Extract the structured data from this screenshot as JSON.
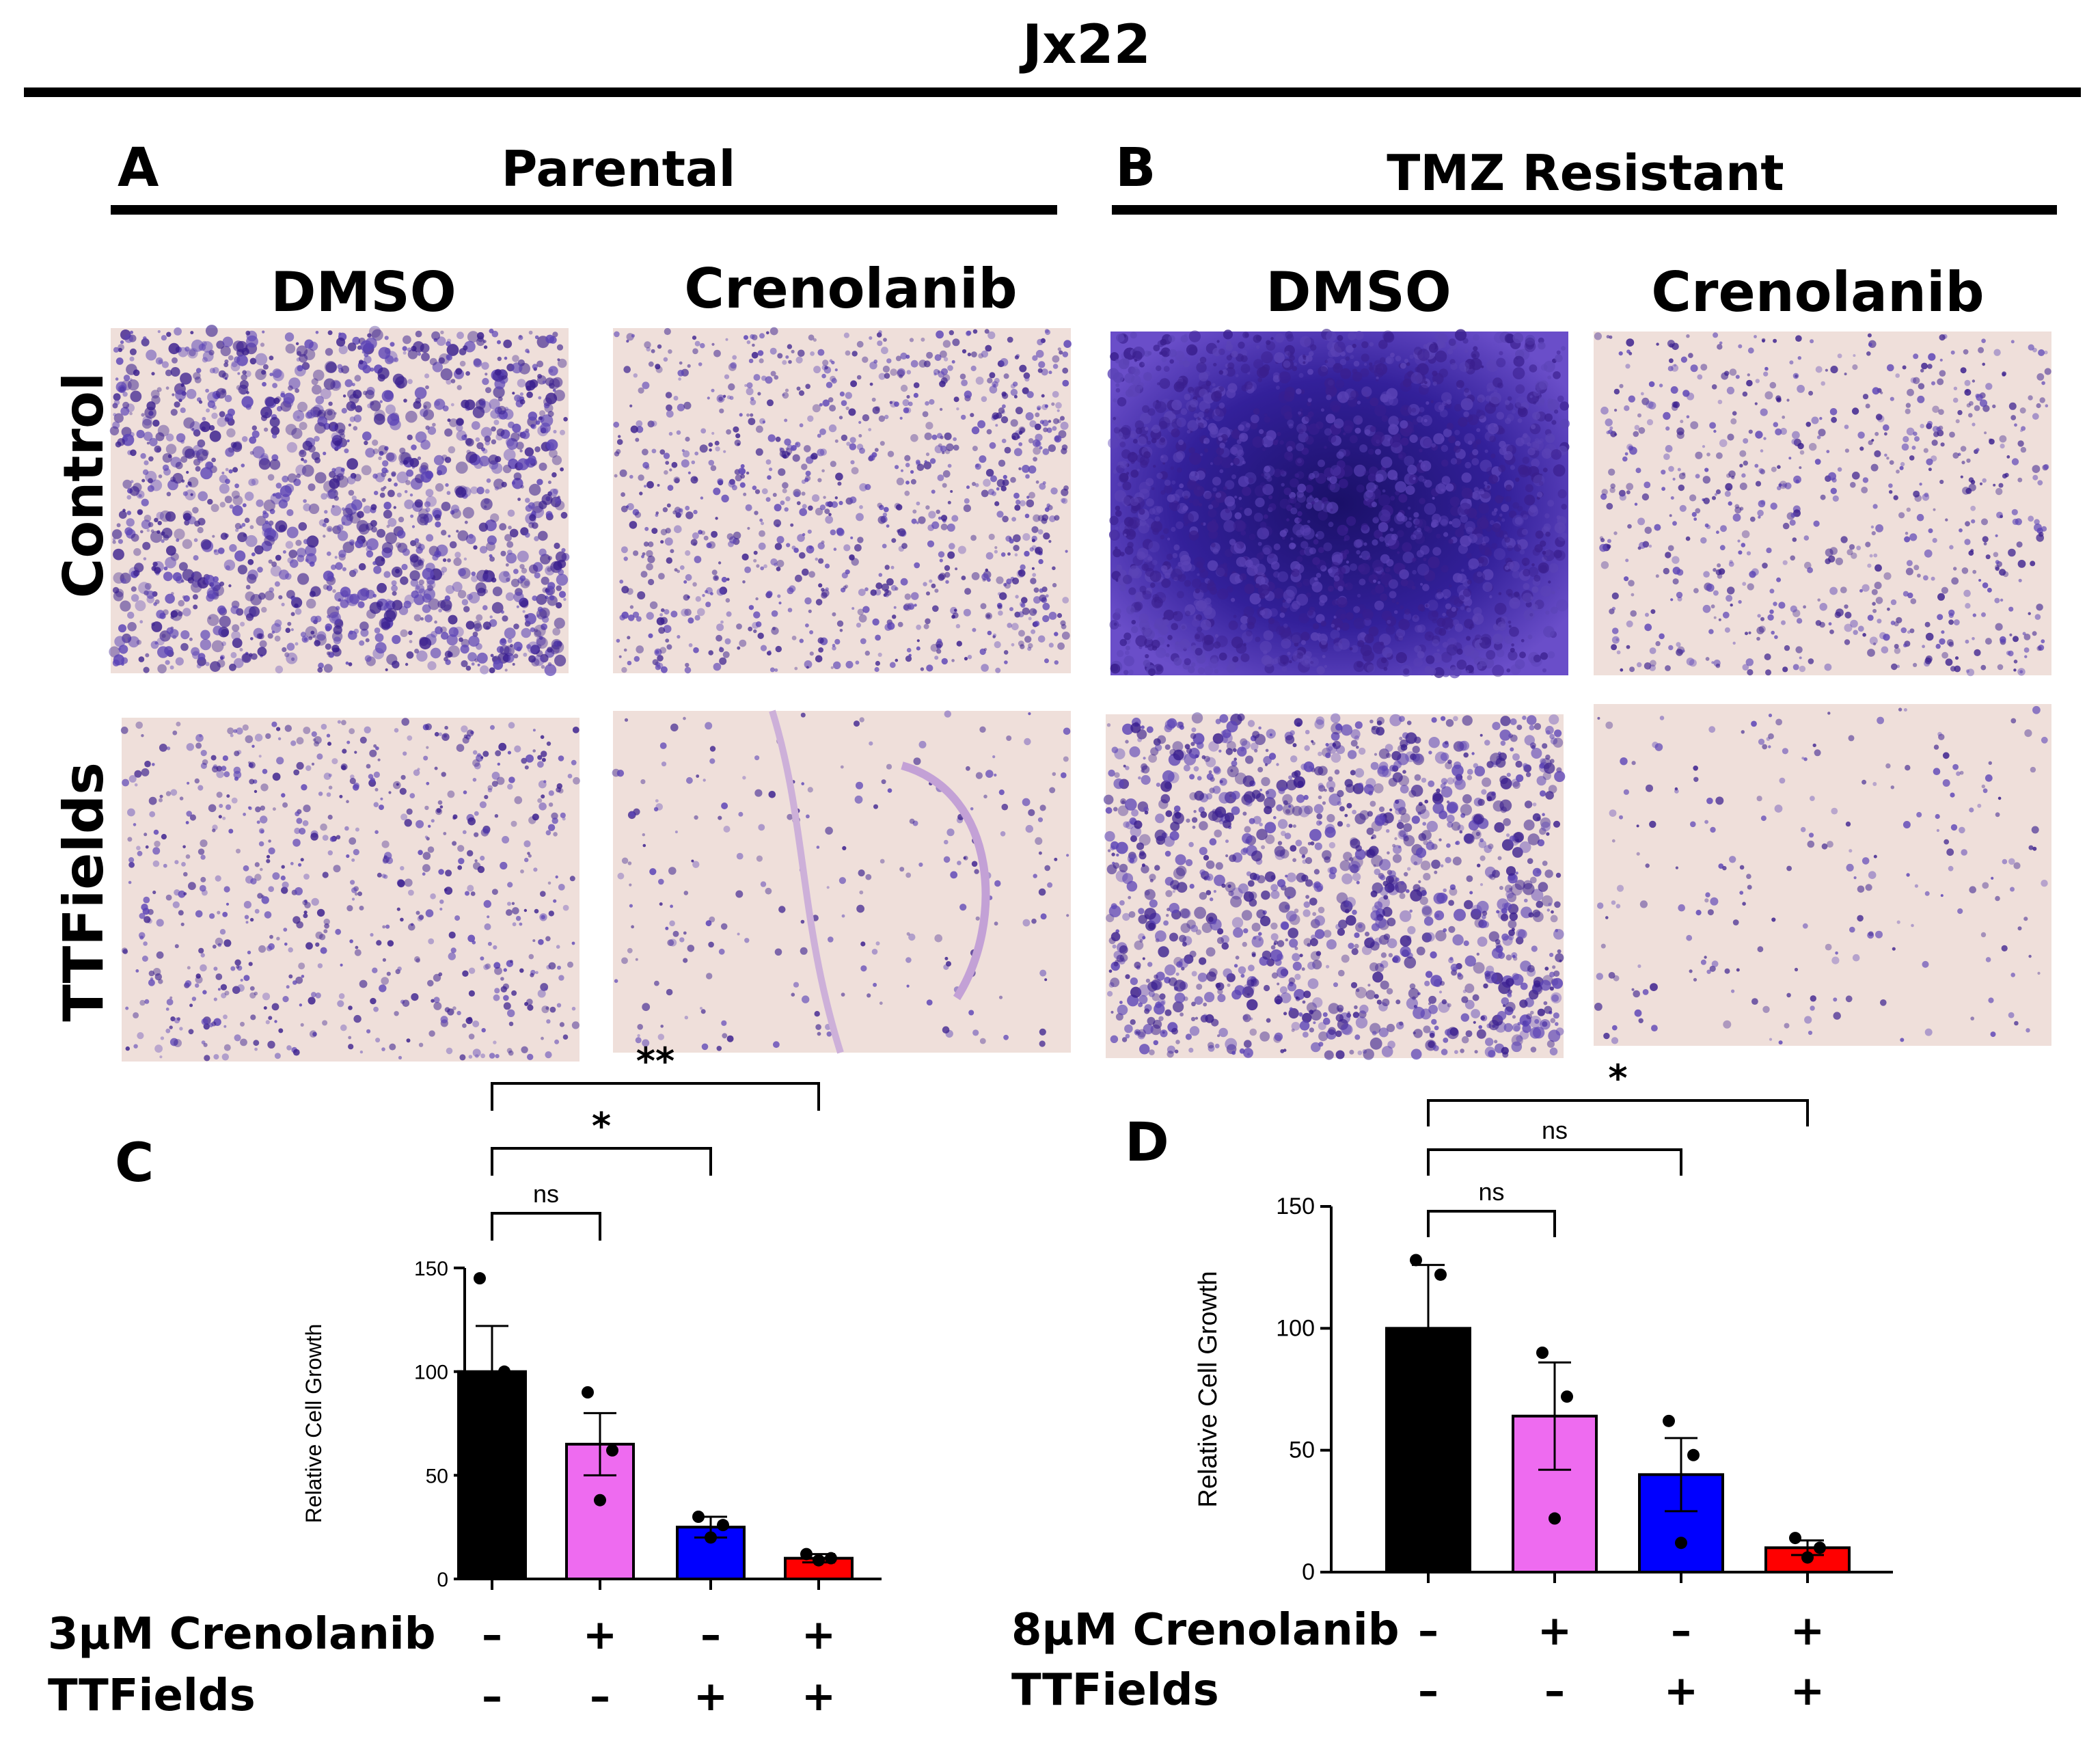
{
  "figure": {
    "title": "Jx22",
    "panel_a": {
      "letter": "A",
      "title": "Parental"
    },
    "panel_b": {
      "letter": "B",
      "title": "TMZ Resistant"
    },
    "col_labels": [
      "DMSO",
      "Crenolanib",
      "DMSO",
      "Crenolanib"
    ],
    "row_labels": [
      "Control",
      "TTFields"
    ],
    "panel_c_letter": "C",
    "panel_d_letter": "D"
  },
  "colors": {
    "black": "#000000",
    "pink": "#ee6bf0",
    "blue": "#0000ff",
    "red": "#ff0000",
    "stain_dark": "#3a1f8e",
    "stain": "#5b43b6",
    "background_pink": "#efdfda"
  },
  "micrographs": [
    {
      "name": "parental-dmso-control",
      "density": 0.85
    },
    {
      "name": "parental-crenolanib-control",
      "density": 0.55
    },
    {
      "name": "tmz-dmso-control",
      "density": 1.0
    },
    {
      "name": "tmz-crenolanib-control",
      "density": 0.35
    },
    {
      "name": "parental-dmso-ttfields",
      "density": 0.35
    },
    {
      "name": "parental-crenolanib-ttfields",
      "density": 0.05
    },
    {
      "name": "tmz-dmso-ttfields",
      "density": 0.75
    },
    {
      "name": "tmz-crenolanib-ttfields",
      "density": 0.04
    }
  ],
  "chart_data": [
    {
      "type": "bar",
      "panel": "C",
      "ylabel": "Relative Cell Growth",
      "ylim": [
        0,
        150
      ],
      "yticks": [
        0,
        50,
        100,
        150
      ],
      "values": [
        100,
        65,
        25,
        10
      ],
      "errors": [
        22,
        15,
        5,
        2
      ],
      "points": [
        [
          145,
          100,
          55
        ],
        [
          90,
          62,
          38
        ],
        [
          30,
          26,
          20
        ],
        [
          12,
          10,
          9
        ]
      ],
      "colors": [
        "#000000",
        "#ee6bf0",
        "#0000ff",
        "#ff0000"
      ],
      "significance": [
        {
          "from": 0,
          "to": 1,
          "label": "ns"
        },
        {
          "from": 0,
          "to": 2,
          "label": "*"
        },
        {
          "from": 0,
          "to": 3,
          "label": "**"
        }
      ],
      "conditions": [
        {
          "label": "3µM Crenolanib",
          "values": [
            "–",
            "+",
            "–",
            "+"
          ]
        },
        {
          "label": "TTFields",
          "values": [
            "–",
            "–",
            "+",
            "+"
          ]
        }
      ]
    },
    {
      "type": "bar",
      "panel": "D",
      "ylabel": "Relative Cell Growth",
      "ylim": [
        0,
        150
      ],
      "yticks": [
        0,
        50,
        100,
        150
      ],
      "values": [
        100,
        64,
        40,
        10
      ],
      "errors": [
        26,
        22,
        15,
        3
      ],
      "points": [
        [
          128,
          122,
          50
        ],
        [
          90,
          72,
          22
        ],
        [
          62,
          48,
          12
        ],
        [
          14,
          10,
          6
        ]
      ],
      "colors": [
        "#000000",
        "#ee6bf0",
        "#0000ff",
        "#ff0000"
      ],
      "significance": [
        {
          "from": 0,
          "to": 1,
          "label": "ns"
        },
        {
          "from": 0,
          "to": 2,
          "label": "ns"
        },
        {
          "from": 0,
          "to": 3,
          "label": "*"
        }
      ],
      "conditions": [
        {
          "label": "8µM Crenolanib",
          "values": [
            "–",
            "+",
            "–",
            "+"
          ]
        },
        {
          "label": "TTFields",
          "values": [
            "–",
            "–",
            "+",
            "+"
          ]
        }
      ]
    }
  ]
}
